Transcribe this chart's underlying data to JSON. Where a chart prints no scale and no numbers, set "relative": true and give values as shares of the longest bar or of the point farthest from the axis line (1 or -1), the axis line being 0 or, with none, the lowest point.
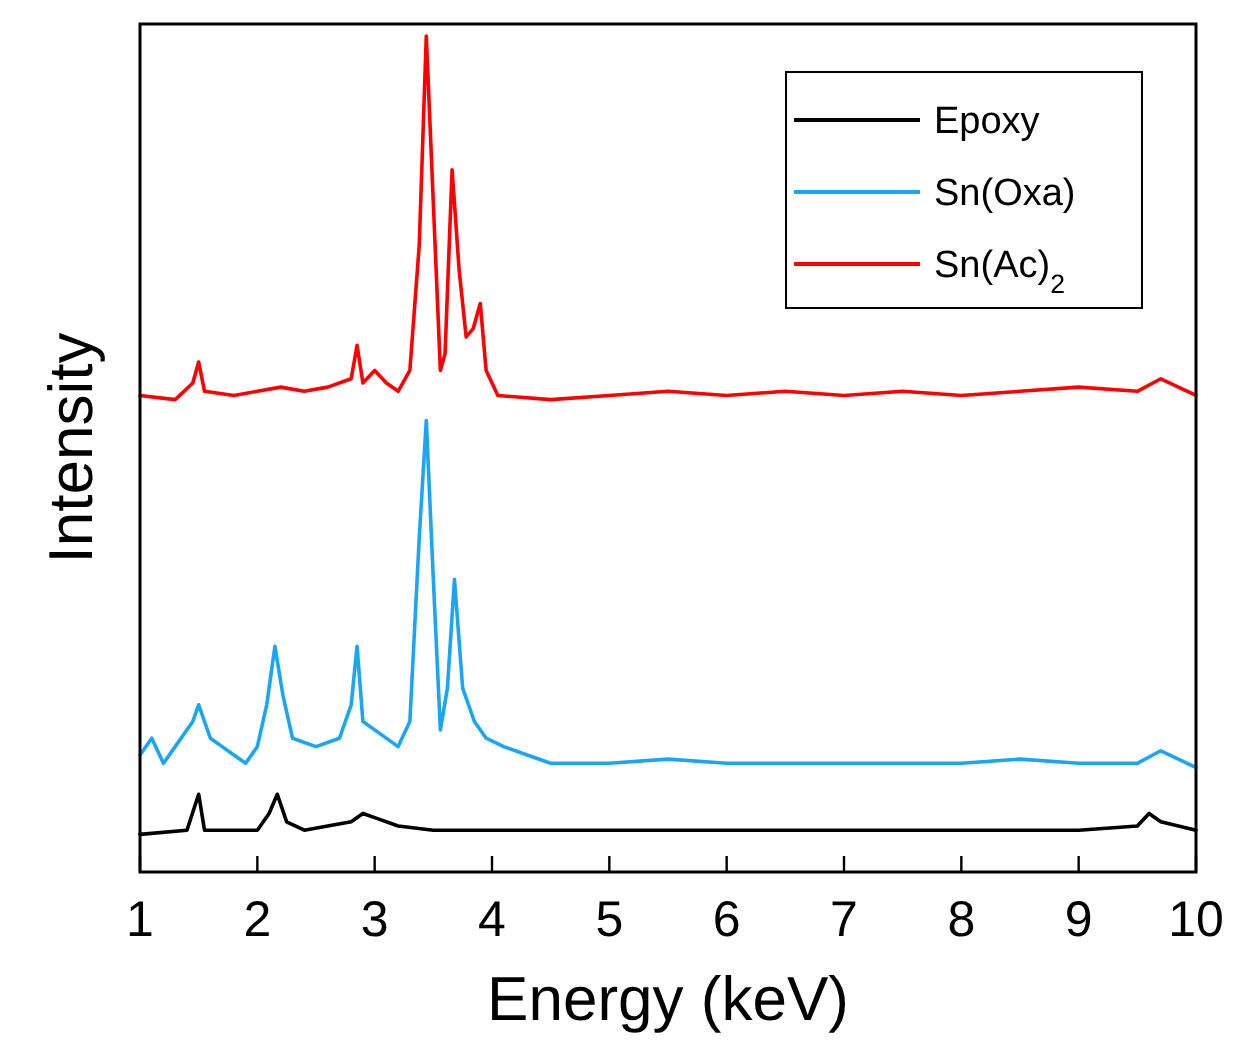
{
  "chart_data": {
    "type": "line",
    "xlabel": "Energy (keV)",
    "ylabel": "Intensity",
    "relative": true,
    "xlim": [
      1,
      10
    ],
    "xticks": [
      1,
      2,
      3,
      4,
      5,
      6,
      7,
      8,
      9,
      10
    ],
    "tick_labels": "x",
    "legend": "top right",
    "series": [
      {
        "name": "Epoxy",
        "color": "#000000",
        "x": [
          1.0,
          1.4,
          1.5,
          1.55,
          2.0,
          2.1,
          2.17,
          2.25,
          2.4,
          2.8,
          2.9,
          3.0,
          3.2,
          3.5,
          4,
          5,
          6,
          7,
          8,
          9,
          9.5,
          9.6,
          9.7,
          10
        ],
        "values": [
          0.045,
          0.05,
          0.093,
          0.05,
          0.05,
          0.07,
          0.093,
          0.06,
          0.05,
          0.06,
          0.07,
          0.065,
          0.055,
          0.05,
          0.05,
          0.05,
          0.05,
          0.05,
          0.05,
          0.05,
          0.055,
          0.07,
          0.06,
          0.05
        ]
      },
      {
        "name": "Sn(Oxa)",
        "color": "#1aa6f5",
        "x": [
          1.0,
          1.1,
          1.2,
          1.3,
          1.45,
          1.5,
          1.6,
          1.7,
          1.8,
          1.9,
          2.0,
          2.08,
          2.15,
          2.22,
          2.3,
          2.5,
          2.7,
          2.8,
          2.85,
          2.9,
          3.0,
          3.2,
          3.3,
          3.38,
          3.44,
          3.5,
          3.56,
          3.62,
          3.68,
          3.75,
          3.85,
          3.95,
          4.1,
          4.3,
          4.5,
          5,
          5.5,
          6,
          6.5,
          7,
          7.5,
          8,
          8.5,
          9,
          9.5,
          9.7,
          10
        ],
        "values": [
          0.14,
          0.16,
          0.13,
          0.15,
          0.18,
          0.2,
          0.16,
          0.15,
          0.14,
          0.13,
          0.15,
          0.2,
          0.27,
          0.21,
          0.16,
          0.15,
          0.16,
          0.2,
          0.27,
          0.18,
          0.17,
          0.15,
          0.18,
          0.4,
          0.54,
          0.35,
          0.17,
          0.22,
          0.35,
          0.22,
          0.18,
          0.16,
          0.15,
          0.14,
          0.13,
          0.13,
          0.135,
          0.13,
          0.13,
          0.13,
          0.13,
          0.13,
          0.135,
          0.13,
          0.13,
          0.145,
          0.125
        ]
      },
      {
        "name": "Sn(Ac)$_{2}$",
        "color": "#ff0000",
        "x": [
          1.0,
          1.3,
          1.45,
          1.5,
          1.55,
          1.8,
          2.0,
          2.2,
          2.4,
          2.6,
          2.8,
          2.85,
          2.9,
          3.0,
          3.1,
          3.2,
          3.3,
          3.38,
          3.44,
          3.5,
          3.56,
          3.6,
          3.66,
          3.72,
          3.78,
          3.84,
          3.9,
          3.95,
          4.05,
          4.5,
          5,
          5.5,
          6,
          6.5,
          7,
          7.5,
          8,
          8.5,
          9,
          9.5,
          9.7,
          10
        ],
        "values": [
          0.57,
          0.565,
          0.585,
          0.61,
          0.575,
          0.57,
          0.575,
          0.58,
          0.575,
          0.58,
          0.59,
          0.63,
          0.585,
          0.6,
          0.585,
          0.575,
          0.6,
          0.75,
          1.0,
          0.8,
          0.6,
          0.62,
          0.84,
          0.72,
          0.64,
          0.65,
          0.68,
          0.6,
          0.57,
          0.565,
          0.57,
          0.575,
          0.57,
          0.575,
          0.57,
          0.575,
          0.57,
          0.575,
          0.58,
          0.575,
          0.59,
          0.57
        ]
      }
    ]
  }
}
